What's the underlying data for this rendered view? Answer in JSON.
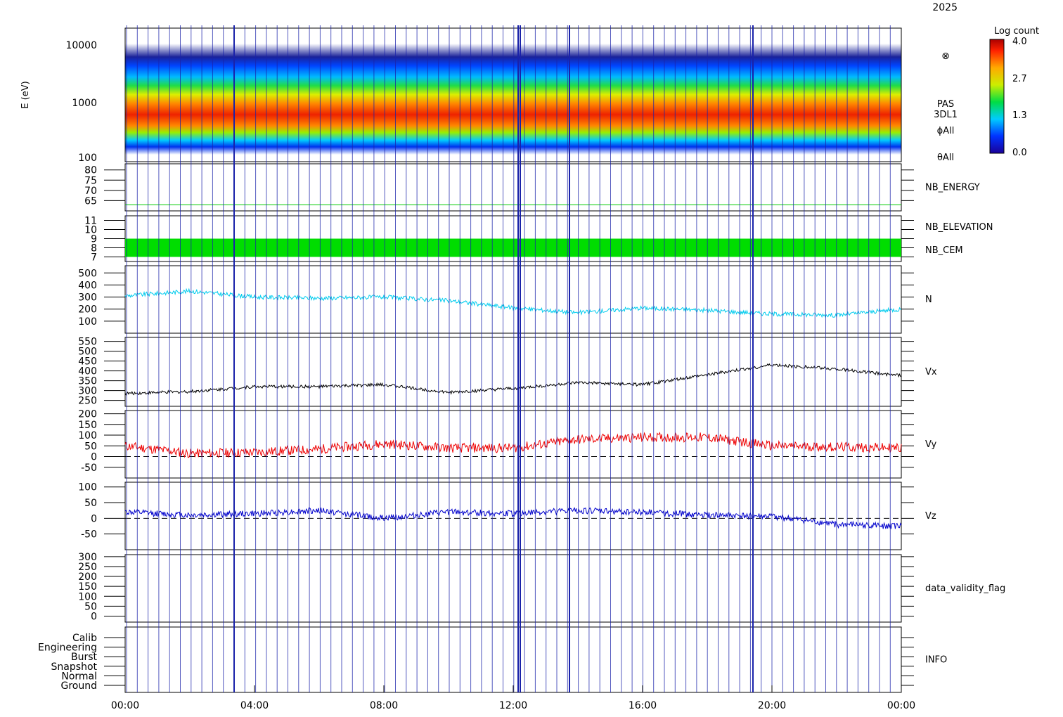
{
  "date_label": "2025",
  "colorbar": {
    "title": "Log count",
    "ticks": [
      "4.0",
      "2.7",
      "1.3",
      "0.0"
    ]
  },
  "spectrogram": {
    "ylabel": "E (eV)",
    "yticks": [
      "10000",
      "1000",
      "100"
    ],
    "labels": [
      "PAS",
      "3DL1",
      "ϕAll",
      "θAll"
    ],
    "symbol": "⊗"
  },
  "panels": [
    {
      "key": "nb_energy",
      "label": "NB_ENERGY",
      "color": "#00cc00",
      "yticks": [
        "80",
        "75",
        "70",
        "65"
      ]
    },
    {
      "key": "nb_elev",
      "label": "NB_ELEVATION",
      "color": "#00cc00",
      "label2": "NB_CEM",
      "color2": "#0000cc",
      "yticks": [
        "11",
        "10",
        "9",
        "8",
        "7"
      ]
    },
    {
      "key": "n",
      "label": "N",
      "color": "#00ccee",
      "yticks": [
        "500",
        "400",
        "300",
        "200",
        "100"
      ]
    },
    {
      "key": "vx",
      "label": "Vx",
      "color": "#000000",
      "yticks": [
        "550",
        "500",
        "450",
        "400",
        "350",
        "300",
        "250"
      ]
    },
    {
      "key": "vy",
      "label": "Vy",
      "color": "#ee0000",
      "yticks": [
        "200",
        "150",
        "100",
        "50",
        "0",
        "-50"
      ]
    },
    {
      "key": "vz",
      "label": "Vz",
      "color": "#0000cc",
      "yticks": [
        "100",
        "50",
        "0",
        "-50"
      ]
    },
    {
      "key": "flag",
      "label": "data_validity_flag",
      "color": "#000000",
      "yticks": [
        "300",
        "250",
        "200",
        "150",
        "100",
        "50",
        "0"
      ]
    },
    {
      "key": "info",
      "label": "INFO",
      "color": "#000000",
      "yticks": [
        "Calib",
        "Engineering",
        "Burst",
        "Snapshot",
        "Normal",
        "Ground"
      ]
    }
  ],
  "xticks": [
    "00:00",
    "04:00",
    "08:00",
    "12:00",
    "16:00",
    "20:00",
    "00:00"
  ],
  "chart_data": {
    "type": "line",
    "x_unit": "hours UT",
    "x": [
      0,
      2,
      4,
      6,
      8,
      10,
      12,
      14,
      16,
      18,
      20,
      22,
      24
    ],
    "series": [
      {
        "name": "N",
        "values": [
          310,
          350,
          300,
          290,
          300,
          270,
          210,
          170,
          210,
          190,
          160,
          150,
          200
        ]
      },
      {
        "name": "Vx",
        "values": [
          285,
          295,
          320,
          320,
          330,
          290,
          310,
          340,
          330,
          380,
          430,
          410,
          375
        ]
      },
      {
        "name": "Vy",
        "values": [
          50,
          15,
          20,
          35,
          60,
          40,
          40,
          80,
          90,
          90,
          50,
          45,
          40
        ]
      },
      {
        "name": "Vz",
        "values": [
          20,
          10,
          15,
          25,
          0,
          20,
          15,
          25,
          20,
          10,
          5,
          -20,
          -25
        ]
      },
      {
        "name": "NB_ENERGY",
        "values": [
          63,
          63,
          63,
          63,
          63,
          63,
          63,
          63,
          63,
          63,
          63,
          63,
          63
        ]
      }
    ],
    "xlim": [
      0,
      24
    ]
  }
}
